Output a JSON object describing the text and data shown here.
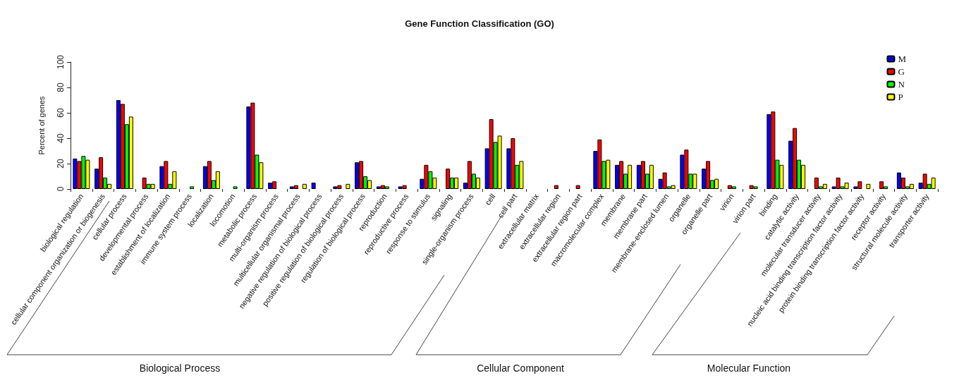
{
  "chart_data": {
    "type": "bar",
    "title": "Gene Function Classification (GO)",
    "ylabel": "Percent of genes",
    "categories": [
      "biological regulation",
      "cellular component organization or biogenesis",
      "cellular process",
      "developmental process",
      "establishment of localization",
      "immune system process",
      "localization",
      "locomotion",
      "metabolic process",
      "multi-organism process",
      "multicellular organismal process",
      "negative regulation of biological process",
      "positive regulation of biological process",
      "regulation of biological process",
      "reproduction",
      "reproductive process",
      "response to stimulus",
      "signaling",
      "single-organism process",
      "cell",
      "cell part",
      "extracellular matrix",
      "extracellular region",
      "extracellular region part",
      "macromolecular complex",
      "membrane",
      "membrane part",
      "membrane-enclosed lumen",
      "organelle",
      "organelle part",
      "virion",
      "virion part",
      "binding",
      "catalytic activity",
      "molecular transducer activity",
      "nucleic acid binding transcription factor activity",
      "protein binding transcription factor activity",
      "receptor activity",
      "structural molecule activity",
      "transporter activity"
    ],
    "series": [
      {
        "name": "M",
        "color": "#0000ff",
        "values": [
          24,
          16,
          70,
          0,
          18,
          0,
          18,
          0,
          65,
          5,
          2,
          5,
          2,
          21,
          2,
          2,
          8,
          0,
          5,
          32,
          32,
          0,
          0,
          0,
          30,
          19,
          19,
          8,
          27,
          16,
          0,
          0,
          59,
          38,
          0,
          2,
          2,
          0,
          13,
          5
        ]
      },
      {
        "name": "G",
        "color": "#ff0000",
        "values": [
          22,
          25,
          67,
          9,
          22,
          0,
          22,
          0,
          68,
          6,
          3,
          0,
          3,
          22,
          3,
          3,
          19,
          16,
          22,
          55,
          40,
          0,
          3,
          3,
          39,
          22,
          22,
          13,
          31,
          22,
          3,
          3,
          61,
          48,
          9,
          9,
          6,
          6,
          9,
          12
        ]
      },
      {
        "name": "N",
        "color": "#00ff00",
        "values": [
          26,
          9,
          51,
          4,
          4,
          2,
          7,
          2,
          27,
          0,
          0,
          0,
          0,
          10,
          2,
          0,
          14,
          9,
          12,
          37,
          19,
          0,
          0,
          0,
          22,
          12,
          12,
          2,
          12,
          7,
          2,
          2,
          23,
          23,
          2,
          2,
          0,
          2,
          2,
          4
        ]
      },
      {
        "name": "P",
        "color": "#ffff00",
        "values": [
          23,
          4,
          57,
          4,
          14,
          0,
          14,
          0,
          21,
          0,
          4,
          0,
          4,
          7,
          0,
          0,
          9,
          9,
          9,
          42,
          22,
          0,
          0,
          0,
          23,
          19,
          19,
          3,
          12,
          8,
          0,
          0,
          19,
          19,
          4,
          5,
          4,
          0,
          4,
          9
        ]
      }
    ],
    "ylim": [
      0,
      100
    ],
    "yticks": [
      0,
      20,
      40,
      60,
      80,
      100
    ],
    "grid": false,
    "legend": "top right",
    "annotations": [
      "Biological Process",
      "Cellular Component",
      "Molecular Function"
    ]
  }
}
